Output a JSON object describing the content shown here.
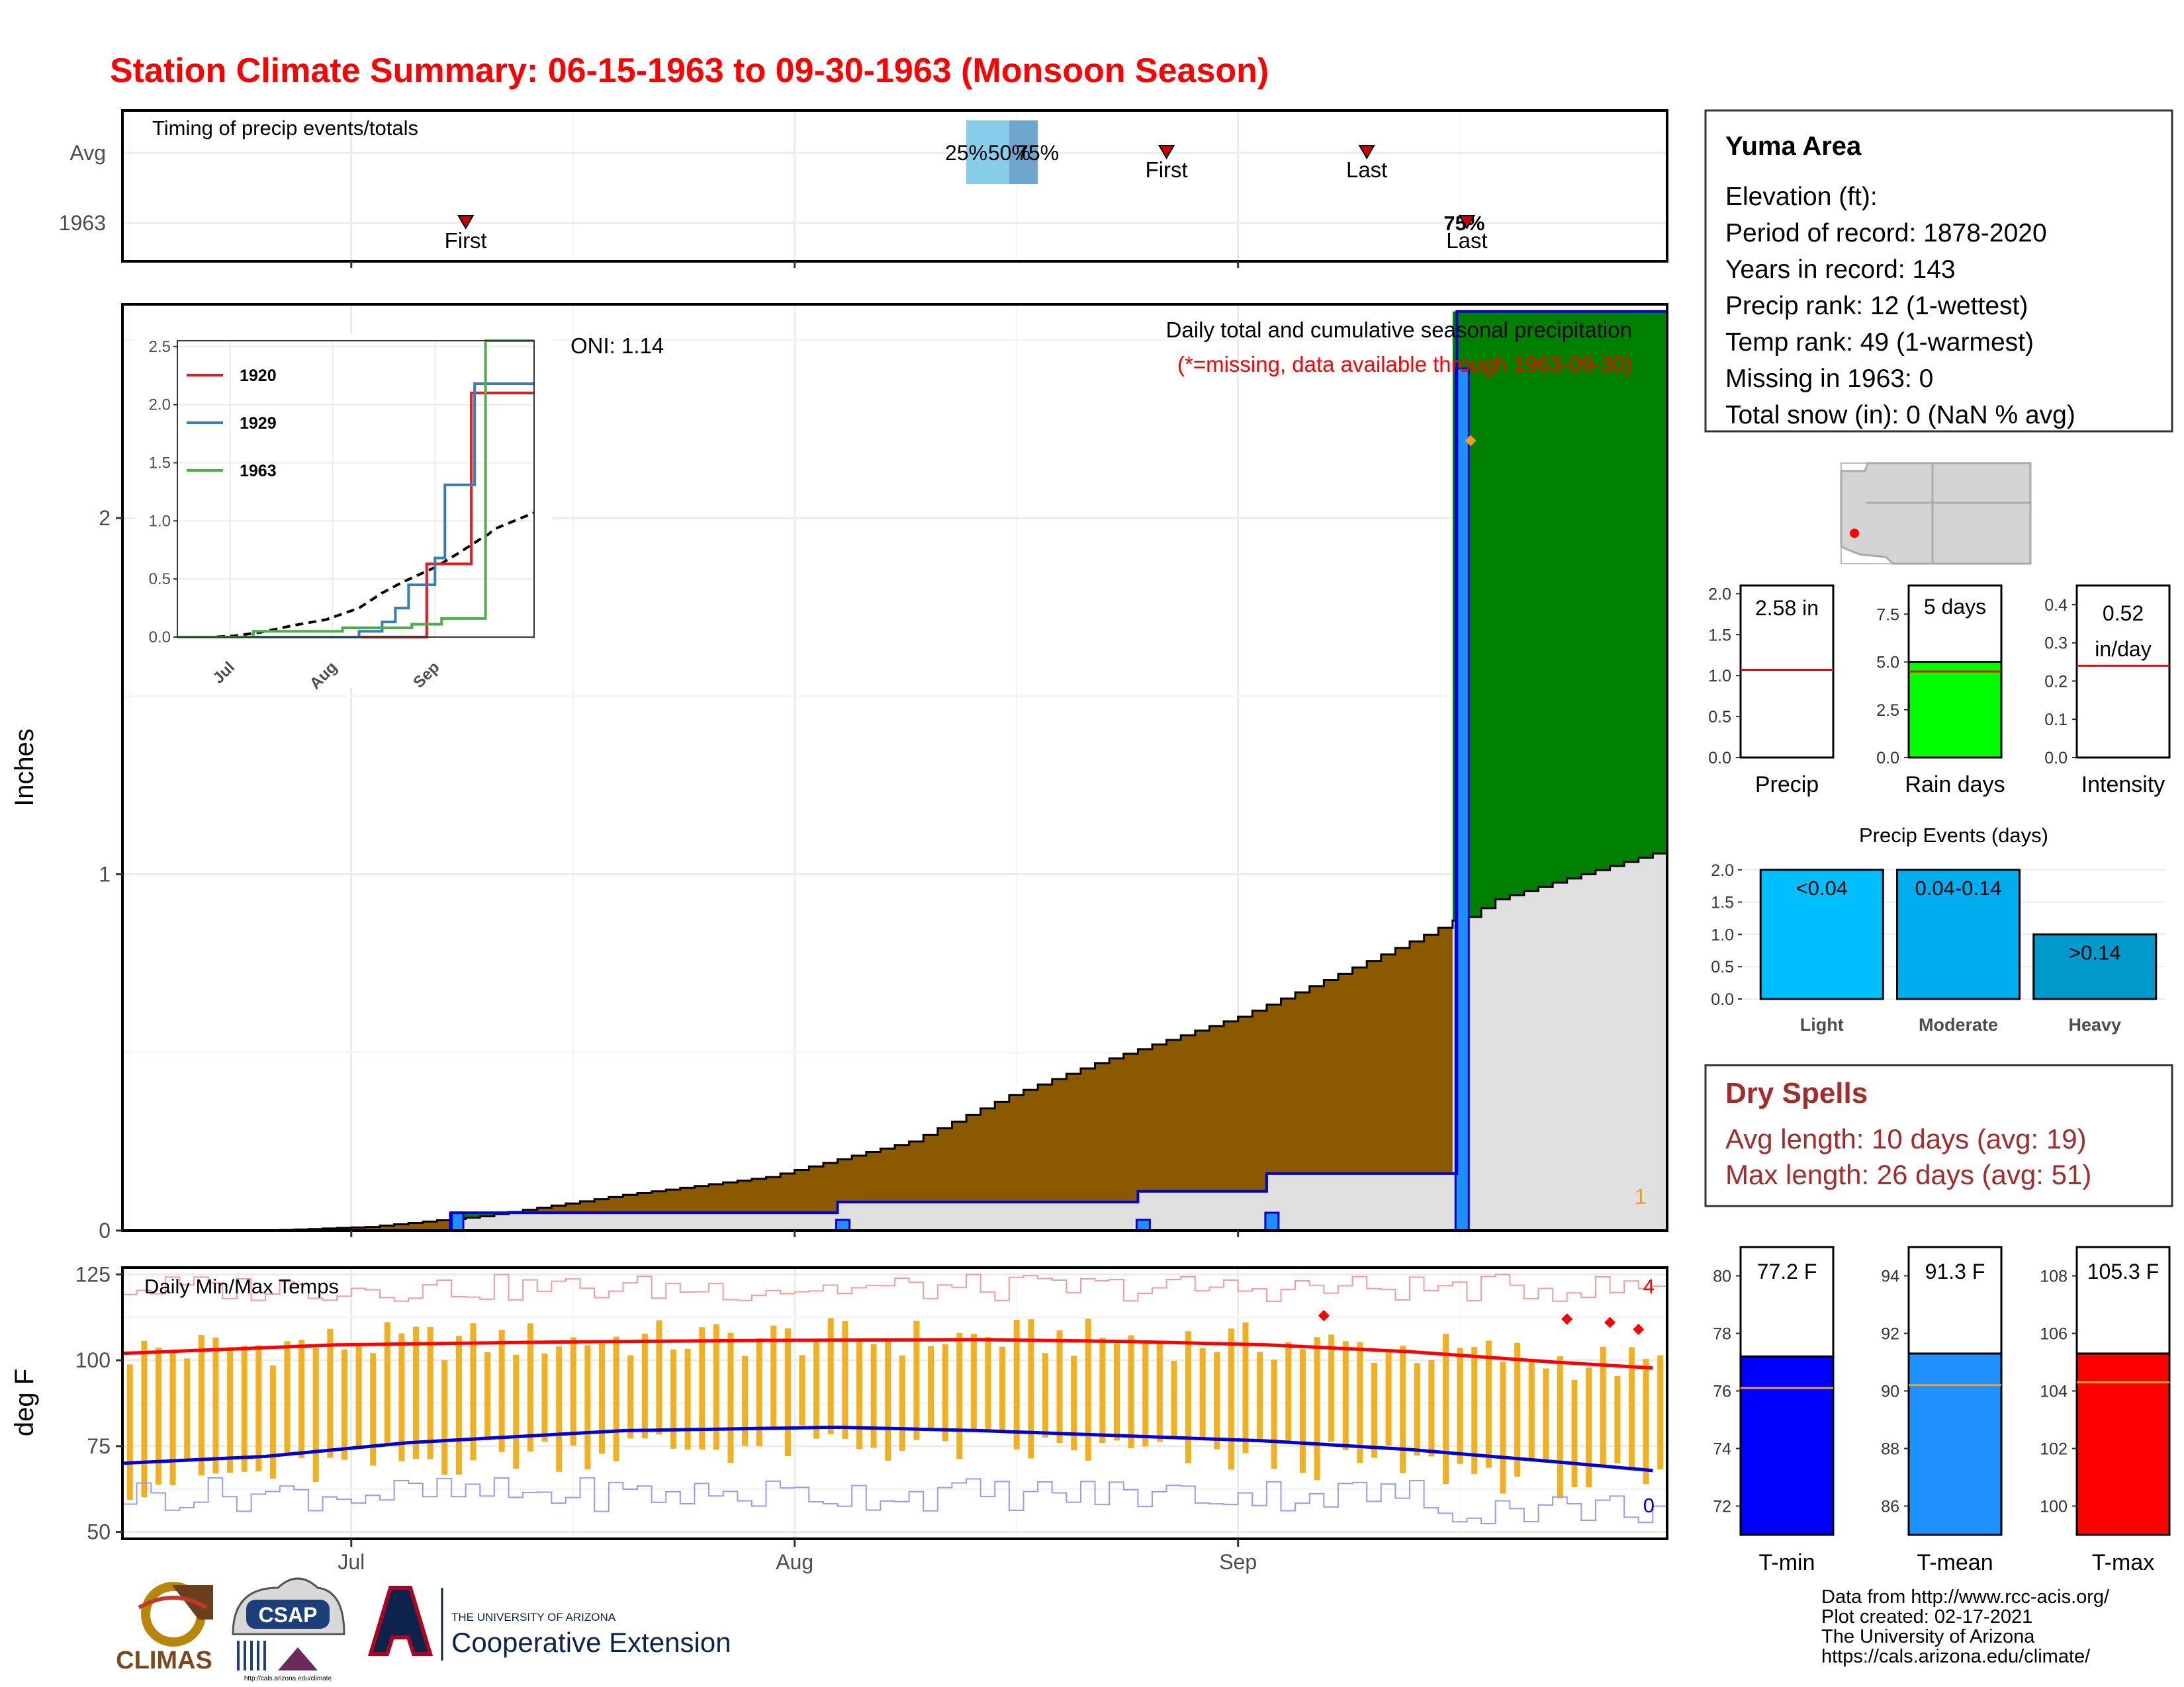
{
  "page_title": "Station Climate Summary: 06-15-1963 to 09-30-1963 (Monsoon Season)",
  "colors": {
    "title": "#ff0000",
    "brown": "#8b5a00",
    "green": "#008000",
    "blue_bar": "#1e8fff",
    "gray_fill": "#e0e0e0",
    "tmax": "#ff0000",
    "tmin": "#0000ff",
    "orange": "#f0b020",
    "dry": "#a52a2a"
  },
  "month_labels": [
    "Jul",
    "Aug",
    "Sep"
  ],
  "timing": {
    "title": "Timing of precip events/totals",
    "rows": [
      "Avg",
      "1963"
    ],
    "avg_first": {
      "day": 73,
      "label": "First"
    },
    "avg_last": {
      "day": 87,
      "label": "Last"
    },
    "pct": {
      "p25": "25%",
      "p50": "50%",
      "p75": "75%"
    },
    "pct_days": [
      59,
      62,
      64
    ],
    "y1963_first": {
      "day": 24,
      "label": "First"
    },
    "y1963_last": {
      "day": 94,
      "label": "Last"
    },
    "y1963_pct": "75%"
  },
  "main": {
    "ylabel": "Inches",
    "yticks": [
      0,
      1,
      2
    ],
    "oni": "ONI: 1.14",
    "subtitle": "Daily total and cumulative seasonal precipitation",
    "note": "(*=missing, data available through 1963-09-30)",
    "corner": "1",
    "ymax": 2.6
  },
  "inset": {
    "yticks": [
      0.0,
      0.5,
      1.0,
      1.5,
      2.0,
      2.5
    ],
    "ytick_labels": [
      "0.0",
      "0.5",
      "1.0",
      "1.5",
      "2.0",
      "2.5"
    ],
    "xticks": [
      "Jul",
      "Aug",
      "Sep"
    ],
    "legend": [
      {
        "name": "1920",
        "color": "#e41a1c"
      },
      {
        "name": "1929",
        "color": "#377eb8"
      },
      {
        "name": "1963",
        "color": "#4daf4a"
      }
    ]
  },
  "info": {
    "station": "Yuma Area",
    "lines": [
      "Elevation (ft):",
      "Period of record: 1878-2020",
      "Years in record: 143",
      "Precip rank: 12 (1-wettest)",
      "Temp rank: 49 (1-warmest)",
      "Missing in 1963: 0",
      "Total snow (in): 0 (NaN % avg)"
    ]
  },
  "mini_precip": {
    "value": "2.58 in",
    "label": "Precip",
    "ticks": [
      "0.0",
      "0.5",
      "1.0",
      "1.5",
      "2.0"
    ],
    "avg": 1.07,
    "max": 2.1,
    "bar": 2.58
  },
  "mini_raindays": {
    "value": "5 days",
    "label": "Rain days",
    "ticks": [
      "0.0",
      "2.5",
      "5.0",
      "7.5"
    ],
    "avg": 4.5,
    "max": 9.0,
    "bar": 5
  },
  "mini_intensity": {
    "value": "0.52",
    "value2": "in/day",
    "label": "Intensity",
    "ticks": [
      "0.0",
      "0.1",
      "0.2",
      "0.3",
      "0.4"
    ],
    "avg": 0.24,
    "max": 0.45,
    "bar": 0.52
  },
  "events": {
    "title": "Precip Events (days)",
    "ticks": [
      "0.0",
      "0.5",
      "1.0",
      "1.5",
      "2.0"
    ],
    "bars": [
      {
        "cat": "Light",
        "label": "<0.04",
        "value": 2,
        "color": "#00bfff"
      },
      {
        "cat": "Moderate",
        "label": "0.04-0.14",
        "value": 2,
        "color": "#00aeef"
      },
      {
        "cat": "Heavy",
        "label": ">0.14",
        "value": 1,
        "color": "#0099cc"
      }
    ]
  },
  "dry": {
    "title": "Dry Spells",
    "avg": "Avg length: 10 days (avg: 19)",
    "max": "Max length: 26 days (avg: 51)"
  },
  "temps": {
    "title": "Daily Min/Max Temps",
    "ylabel": "deg F",
    "yticks": [
      50,
      75,
      100,
      125
    ],
    "count_max": "4",
    "count_min": "0"
  },
  "tmin_box": {
    "value": "77.2 F",
    "label": "T-min",
    "ticks": [
      "72",
      "74",
      "76",
      "78",
      "80"
    ],
    "tickvals": [
      72,
      74,
      76,
      78,
      80
    ],
    "lo": 71,
    "hi": 81,
    "bar": 77.2,
    "avg": 76.1
  },
  "tmean_box": {
    "value": "91.3 F",
    "label": "T-mean",
    "ticks": [
      "86",
      "88",
      "90",
      "92",
      "94"
    ],
    "tickvals": [
      86,
      88,
      90,
      92,
      94
    ],
    "lo": 85,
    "hi": 95,
    "bar": 91.3,
    "avg": 90.2
  },
  "tmax_box": {
    "value": "105.3 F",
    "label": "T-max",
    "ticks": [
      "100",
      "102",
      "104",
      "106",
      "108"
    ],
    "tickvals": [
      100,
      102,
      104,
      106,
      108
    ],
    "lo": 99,
    "hi": 109,
    "bar": 105.3,
    "avg": 104.3
  },
  "footer": {
    "lines": [
      "Data from http://www.rcc-acis.org/",
      "Plot created: 02-17-2021",
      "The University of Arizona",
      "https://cals.arizona.edu/climate/"
    ],
    "climas": "CLIMAS",
    "csap": "CSAP",
    "csap_url": "http://cals.arizona.edu/climate",
    "ua_top": "THE UNIVERSITY OF ARIZONA",
    "ua_bottom": "Cooperative Extension"
  },
  "chart_data": [
    {
      "type": "area",
      "title": "Daily total and cumulative seasonal precipitation",
      "ylabel": "Inches",
      "x_range": [
        "1963-06-15",
        "1963-09-30"
      ],
      "ylim": [
        0,
        2.6
      ],
      "daily_precip_events": [
        {
          "date": "1963-07-08",
          "value": 0.05
        },
        {
          "date": "1963-08-04",
          "value": 0.03
        },
        {
          "date": "1963-08-25",
          "value": 0.03
        },
        {
          "date": "1963-09-03",
          "value": 0.05
        },
        {
          "date": "1963-09-16",
          "value": 2.42
        }
      ],
      "cumulative_1963_end": 2.58,
      "avg_cumulative_end": 1.07,
      "series": [
        {
          "name": "1963",
          "x": [
            "1963-06-15",
            "1963-07-08",
            "1963-08-04",
            "1963-08-25",
            "1963-09-03",
            "1963-09-16",
            "1963-09-30"
          ],
          "values": [
            0,
            0.05,
            0.08,
            0.11,
            0.16,
            2.58,
            2.58
          ]
        },
        {
          "name": "avg",
          "x": [
            "1963-06-15",
            "1963-07-01",
            "1963-07-15",
            "1963-08-01",
            "1963-08-15",
            "1963-09-01",
            "1963-09-15",
            "1963-09-30"
          ],
          "values": [
            0,
            0.01,
            0.08,
            0.2,
            0.45,
            0.65,
            0.88,
            1.07
          ]
        }
      ]
    },
    {
      "type": "line",
      "title": "",
      "series": [
        {
          "name": "1920",
          "x": [
            "Jun15",
            "Aug28",
            "Sep08",
            "Sep18",
            "Sep30"
          ],
          "values": [
            0,
            0.63,
            0.63,
            2.1,
            2.1
          ]
        },
        {
          "name": "1929",
          "x": [
            "Jun15",
            "Aug10",
            "Aug20",
            "Aug25",
            "Sep01",
            "Sep05",
            "Sep18",
            "Sep30"
          ],
          "values": [
            0,
            0.1,
            0.25,
            0.45,
            0.68,
            1.31,
            2.18,
            2.18
          ]
        },
        {
          "name": "1963",
          "x": [
            "Jun15",
            "Jul08",
            "Aug04",
            "Aug25",
            "Sep03",
            "Sep16",
            "Sep30"
          ],
          "values": [
            0,
            0.05,
            0.08,
            0.11,
            0.16,
            2.58,
            2.58
          ]
        }
      ],
      "ylim": [
        0,
        2.6
      ]
    },
    {
      "type": "line",
      "title": "Daily Min/Max Temps",
      "ylabel": "deg F",
      "ylim": [
        48,
        127
      ],
      "series": [
        {
          "name": "avg_tmax",
          "values": [
            102,
            104,
            105,
            105.5,
            106,
            106,
            105,
            104,
            103,
            101,
            99,
            97.5
          ]
        },
        {
          "name": "avg_tmin",
          "values": [
            70,
            72,
            75,
            78,
            80,
            80.5,
            80,
            78,
            76,
            74,
            71,
            68
          ]
        }
      ]
    }
  ]
}
